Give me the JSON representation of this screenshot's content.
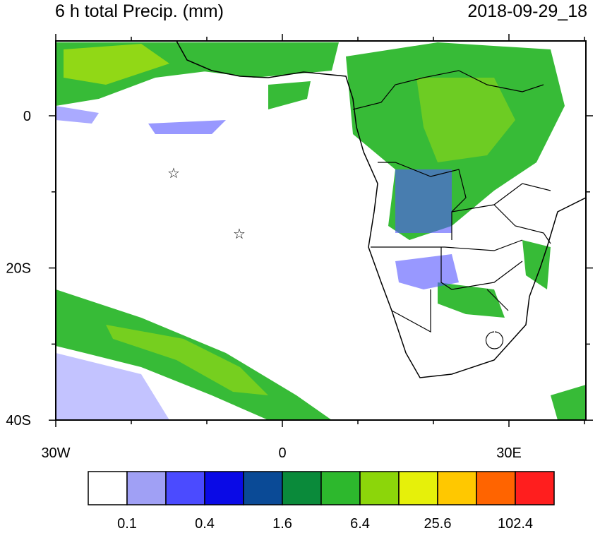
{
  "header": {
    "title": "6 h total Precip. (mm)",
    "date": "2018-09-29_18"
  },
  "map": {
    "lat_labels": [
      "0",
      "20S",
      "40S"
    ],
    "lon_labels": [
      "30W",
      "0",
      "30E"
    ]
  },
  "colorbar": {
    "colors": [
      "#ffffff",
      "#a0a0f5",
      "#4b4bff",
      "#0a0ae6",
      "#0a4a96",
      "#0a8a3a",
      "#2db82d",
      "#8cd60a",
      "#e6f00a",
      "#ffc800",
      "#ff6400",
      "#ff1e1e"
    ],
    "labels": [
      "0.1",
      "0.4",
      "1.6",
      "6.4",
      "25.6",
      "102.4"
    ]
  }
}
